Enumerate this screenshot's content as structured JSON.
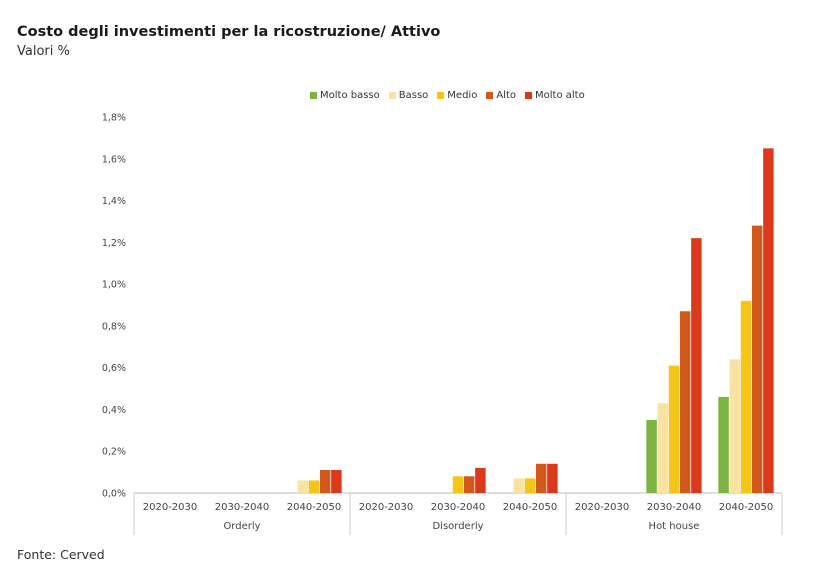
{
  "title": "Costo degli investimenti per la ricostruzione/ Attivo",
  "subtitle": "Valori %",
  "source": "Fonte: Cerved",
  "chart_data": {
    "type": "bar",
    "ylim": [
      0,
      1.8
    ],
    "yticks": [
      "0,0%",
      "0,2%",
      "0,4%",
      "0,6%",
      "0,8%",
      "1,0%",
      "1,2%",
      "1,4%",
      "1,6%",
      "1,8%"
    ],
    "legend_position": "top-center",
    "grid": false,
    "groups": [
      {
        "name": "Orderly",
        "categories": [
          "2020-2030",
          "2030-2040",
          "2040-2050"
        ]
      },
      {
        "name": "Disorderly",
        "categories": [
          "2020-2030",
          "2030-2040",
          "2040-2050"
        ]
      },
      {
        "name": "Hot house",
        "categories": [
          "2020-2030",
          "2030-2040",
          "2040-2050"
        ]
      }
    ],
    "series": [
      {
        "name": "Molto basso",
        "color": "#7cb342",
        "values": [
          0,
          0,
          0,
          0,
          0,
          0,
          0,
          0.35,
          0.46
        ]
      },
      {
        "name": "Basso",
        "color": "#f9e3a3",
        "values": [
          0,
          0,
          0.06,
          0,
          0,
          0.07,
          0,
          0.43,
          0.64
        ]
      },
      {
        "name": "Medio",
        "color": "#f5c518",
        "values": [
          0,
          0,
          0.06,
          0,
          0.08,
          0.07,
          0,
          0.61,
          0.92
        ]
      },
      {
        "name": "Alto",
        "color": "#cf5a1c",
        "values": [
          0,
          0,
          0.11,
          0,
          0.08,
          0.14,
          0,
          0.87,
          1.28
        ]
      },
      {
        "name": "Molto alto",
        "color": "#d93a1b",
        "values": [
          0,
          0,
          0.11,
          0,
          0.12,
          0.14,
          0,
          1.22,
          1.65
        ]
      }
    ]
  }
}
